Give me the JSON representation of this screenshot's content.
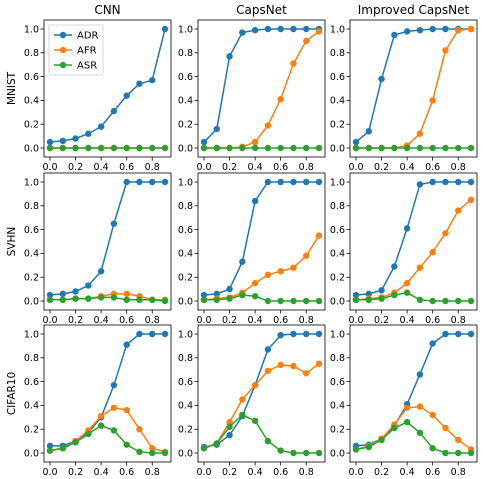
{
  "colors": {
    "ADR": "#1f77b4",
    "AFR": "#ff7f0e",
    "ASR": "#2ca02c",
    "axis": "#000000"
  },
  "grid": false,
  "legend": {
    "placement": "upper-left",
    "panel": "CNN / MNIST",
    "entries": [
      "ADR",
      "AFR",
      "ASR"
    ]
  },
  "columns": [
    "CNN",
    "CapsNet",
    "Improved CapsNet"
  ],
  "rows": [
    "MNIST",
    "SVHN",
    "CIFAR10"
  ],
  "x_ticks": [
    "0.0",
    "0.2",
    "0.4",
    "0.6",
    "0.8"
  ],
  "y_ticks": [
    "0.0",
    "0.2",
    "0.4",
    "0.6",
    "0.8",
    "1.0"
  ],
  "chart_data": [
    {
      "type": "line",
      "column": "CNN",
      "row": "MNIST",
      "xlim": [
        0,
        0.9
      ],
      "ylim": [
        0,
        1
      ],
      "x": [
        0,
        0.1,
        0.2,
        0.3,
        0.4,
        0.5,
        0.6,
        0.7,
        0.8,
        0.9
      ],
      "series": [
        {
          "name": "ADR",
          "values": [
            0.05,
            0.06,
            0.08,
            0.12,
            0.18,
            0.31,
            0.44,
            0.54,
            0.57,
            1.0
          ]
        },
        {
          "name": "AFR",
          "values": [
            0,
            0,
            0,
            0,
            0,
            0,
            0,
            0,
            0,
            0
          ]
        },
        {
          "name": "ASR",
          "values": [
            0,
            0,
            0,
            0,
            0,
            0,
            0,
            0,
            0,
            0
          ]
        }
      ]
    },
    {
      "type": "line",
      "column": "CapsNet",
      "row": "MNIST",
      "xlim": [
        0,
        0.9
      ],
      "ylim": [
        0,
        1
      ],
      "x": [
        0,
        0.1,
        0.2,
        0.3,
        0.4,
        0.5,
        0.6,
        0.7,
        0.8,
        0.9
      ],
      "series": [
        {
          "name": "ADR",
          "values": [
            0.05,
            0.16,
            0.77,
            0.97,
            0.99,
            1.0,
            1.0,
            1.0,
            1.0,
            1.0
          ]
        },
        {
          "name": "AFR",
          "values": [
            0,
            0,
            0,
            0.01,
            0.05,
            0.19,
            0.41,
            0.71,
            0.9,
            0.98
          ]
        },
        {
          "name": "ASR",
          "values": [
            0,
            0,
            0,
            0,
            0,
            0,
            0,
            0,
            0,
            0
          ]
        }
      ]
    },
    {
      "type": "line",
      "column": "Improved CapsNet",
      "row": "MNIST",
      "xlim": [
        0,
        0.9
      ],
      "ylim": [
        0,
        1
      ],
      "x": [
        0,
        0.1,
        0.2,
        0.3,
        0.4,
        0.5,
        0.6,
        0.7,
        0.8,
        0.9
      ],
      "series": [
        {
          "name": "ADR",
          "values": [
            0.05,
            0.14,
            0.58,
            0.95,
            0.98,
            0.99,
            1.0,
            1.0,
            1.0,
            1.0
          ]
        },
        {
          "name": "AFR",
          "values": [
            0,
            0,
            0,
            0,
            0.02,
            0.12,
            0.4,
            0.82,
            0.99,
            1.0
          ]
        },
        {
          "name": "ASR",
          "values": [
            0,
            0,
            0,
            0,
            0,
            0,
            0,
            0,
            0,
            0
          ]
        }
      ]
    },
    {
      "type": "line",
      "column": "CNN",
      "row": "SVHN",
      "xlim": [
        0,
        0.9
      ],
      "ylim": [
        0,
        1
      ],
      "x": [
        0,
        0.1,
        0.2,
        0.3,
        0.4,
        0.5,
        0.6,
        0.7,
        0.8,
        0.9
      ],
      "series": [
        {
          "name": "ADR",
          "values": [
            0.05,
            0.06,
            0.08,
            0.13,
            0.25,
            0.65,
            1.0,
            1.0,
            1.0,
            1.0
          ]
        },
        {
          "name": "AFR",
          "values": [
            0.01,
            0.01,
            0.02,
            0.02,
            0.04,
            0.06,
            0.06,
            0.04,
            0.01,
            0.01
          ]
        },
        {
          "name": "ASR",
          "values": [
            0.01,
            0.01,
            0.02,
            0.02,
            0.03,
            0.03,
            0.01,
            0.01,
            0.01,
            0.0
          ]
        }
      ]
    },
    {
      "type": "line",
      "column": "CapsNet",
      "row": "SVHN",
      "xlim": [
        0,
        0.9
      ],
      "ylim": [
        0,
        1
      ],
      "x": [
        0,
        0.1,
        0.2,
        0.3,
        0.4,
        0.5,
        0.6,
        0.7,
        0.8,
        0.9
      ],
      "series": [
        {
          "name": "ADR",
          "values": [
            0.05,
            0.06,
            0.1,
            0.33,
            0.84,
            1.0,
            1.0,
            1.0,
            1.0,
            1.0
          ]
        },
        {
          "name": "AFR",
          "values": [
            0.01,
            0.02,
            0.03,
            0.07,
            0.15,
            0.22,
            0.25,
            0.28,
            0.38,
            0.55
          ]
        },
        {
          "name": "ASR",
          "values": [
            0.01,
            0.01,
            0.02,
            0.05,
            0.04,
            0.0,
            0.0,
            0.0,
            0.0,
            0.0
          ]
        }
      ]
    },
    {
      "type": "line",
      "column": "Improved CapsNet",
      "row": "SVHN",
      "xlim": [
        0,
        0.9
      ],
      "ylim": [
        0,
        1
      ],
      "x": [
        0,
        0.1,
        0.2,
        0.3,
        0.4,
        0.5,
        0.6,
        0.7,
        0.8,
        0.9
      ],
      "series": [
        {
          "name": "ADR",
          "values": [
            0.05,
            0.06,
            0.09,
            0.29,
            0.61,
            0.98,
            1.0,
            1.0,
            1.0,
            1.0
          ]
        },
        {
          "name": "AFR",
          "values": [
            0.01,
            0.02,
            0.03,
            0.07,
            0.15,
            0.28,
            0.41,
            0.57,
            0.76,
            0.85
          ]
        },
        {
          "name": "ASR",
          "values": [
            0.01,
            0.01,
            0.02,
            0.05,
            0.07,
            0.01,
            0.0,
            0.0,
            0.0,
            0.0
          ]
        }
      ]
    },
    {
      "type": "line",
      "column": "CNN",
      "row": "CIFAR10",
      "xlim": [
        0,
        0.9
      ],
      "ylim": [
        0,
        1
      ],
      "x": [
        0,
        0.1,
        0.2,
        0.3,
        0.4,
        0.5,
        0.6,
        0.7,
        0.8,
        0.9
      ],
      "series": [
        {
          "name": "ADR",
          "values": [
            0.06,
            0.06,
            0.1,
            0.17,
            0.3,
            0.57,
            0.91,
            1.0,
            1.0,
            1.0
          ]
        },
        {
          "name": "AFR",
          "values": [
            0.02,
            0.04,
            0.1,
            0.19,
            0.31,
            0.38,
            0.36,
            0.2,
            0.04,
            0.01
          ]
        },
        {
          "name": "ASR",
          "values": [
            0.02,
            0.04,
            0.09,
            0.16,
            0.23,
            0.19,
            0.07,
            0.01,
            0.0,
            0.0
          ]
        }
      ]
    },
    {
      "type": "line",
      "column": "CapsNet",
      "row": "CIFAR10",
      "xlim": [
        0,
        0.9
      ],
      "ylim": [
        0,
        1
      ],
      "x": [
        0,
        0.1,
        0.2,
        0.3,
        0.4,
        0.5,
        0.6,
        0.7,
        0.8,
        0.9
      ],
      "series": [
        {
          "name": "ADR",
          "values": [
            0.05,
            0.07,
            0.15,
            0.31,
            0.57,
            0.87,
            0.99,
            1.0,
            1.0,
            1.0
          ]
        },
        {
          "name": "AFR",
          "values": [
            0.04,
            0.08,
            0.26,
            0.45,
            0.57,
            0.69,
            0.74,
            0.73,
            0.67,
            0.75
          ]
        },
        {
          "name": "ASR",
          "values": [
            0.04,
            0.08,
            0.22,
            0.32,
            0.27,
            0.1,
            0.02,
            0.0,
            0.0,
            0.0
          ]
        }
      ]
    },
    {
      "type": "line",
      "column": "Improved CapsNet",
      "row": "CIFAR10",
      "xlim": [
        0,
        0.9
      ],
      "ylim": [
        0,
        1
      ],
      "x": [
        0,
        0.1,
        0.2,
        0.3,
        0.4,
        0.5,
        0.6,
        0.7,
        0.8,
        0.9
      ],
      "series": [
        {
          "name": "ADR",
          "values": [
            0.06,
            0.07,
            0.12,
            0.23,
            0.41,
            0.66,
            0.92,
            1.0,
            1.0,
            1.0
          ]
        },
        {
          "name": "AFR",
          "values": [
            0.03,
            0.06,
            0.12,
            0.24,
            0.38,
            0.39,
            0.32,
            0.21,
            0.11,
            0.03
          ]
        },
        {
          "name": "ASR",
          "values": [
            0.03,
            0.05,
            0.11,
            0.21,
            0.26,
            0.17,
            0.04,
            0.0,
            0.0,
            0.0
          ]
        }
      ]
    }
  ]
}
